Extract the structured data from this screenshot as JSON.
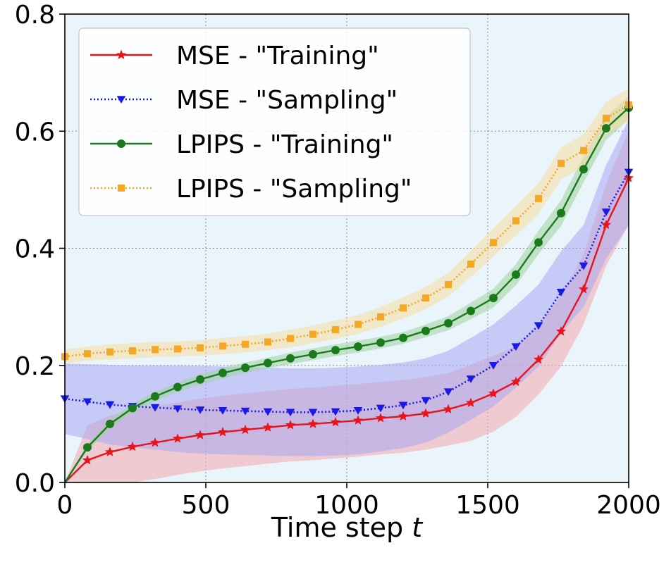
{
  "chart_data": {
    "type": "line",
    "title": "",
    "xlabel": "Time step",
    "xlabel_var": "t",
    "ylabel": "",
    "xlim": [
      0,
      2000
    ],
    "ylim": [
      0,
      0.8
    ],
    "xticks": [
      0,
      500,
      1000,
      1500,
      2000
    ],
    "xtick_labels": [
      "0",
      "500",
      "1000",
      "1500",
      "2000"
    ],
    "yticks": [
      0,
      0.2,
      0.4,
      0.6,
      0.8
    ],
    "ytick_labels": [
      "0.0",
      "0.2",
      "0.4",
      "0.6",
      "0.8"
    ],
    "grid": true,
    "legend_position": "top-left",
    "background": "#eaf4fb",
    "series": [
      {
        "name": "MSE - \"Training\"",
        "color": "#e8141b",
        "band_color": "#f2a7ad",
        "linestyle": "solid",
        "marker": "star",
        "x": [
          0,
          80,
          160,
          240,
          320,
          400,
          480,
          560,
          640,
          720,
          800,
          880,
          960,
          1040,
          1120,
          1200,
          1280,
          1360,
          1440,
          1520,
          1600,
          1680,
          1760,
          1840,
          1920,
          2000
        ],
        "values": [
          0.0,
          0.038,
          0.052,
          0.061,
          0.068,
          0.075,
          0.081,
          0.086,
          0.09,
          0.094,
          0.098,
          0.1,
          0.103,
          0.106,
          0.11,
          0.113,
          0.118,
          0.125,
          0.136,
          0.152,
          0.172,
          0.21,
          0.258,
          0.33,
          0.44,
          0.52
        ],
        "band_halfwidth": [
          0.0,
          0.06,
          0.062,
          0.062,
          0.062,
          0.062,
          0.062,
          0.062,
          0.062,
          0.062,
          0.062,
          0.062,
          0.062,
          0.062,
          0.062,
          0.062,
          0.062,
          0.062,
          0.065,
          0.065,
          0.06,
          0.06,
          0.06,
          0.06,
          0.07,
          0.08
        ]
      },
      {
        "name": "MSE - \"Sampling\"",
        "color": "#1a1ae6",
        "band_color": "#a8a8f2",
        "linestyle": "dotted",
        "marker": "triangle-down",
        "x": [
          0,
          80,
          160,
          240,
          320,
          400,
          480,
          560,
          640,
          720,
          800,
          880,
          960,
          1040,
          1120,
          1200,
          1280,
          1360,
          1440,
          1520,
          1600,
          1680,
          1760,
          1840,
          1920,
          2000
        ],
        "values": [
          0.143,
          0.138,
          0.133,
          0.13,
          0.128,
          0.126,
          0.124,
          0.123,
          0.122,
          0.121,
          0.12,
          0.12,
          0.121,
          0.123,
          0.127,
          0.132,
          0.14,
          0.155,
          0.177,
          0.2,
          0.232,
          0.268,
          0.325,
          0.37,
          0.462,
          0.53
        ],
        "band_halfwidth": [
          0.06,
          0.064,
          0.068,
          0.07,
          0.072,
          0.074,
          0.075,
          0.075,
          0.075,
          0.075,
          0.075,
          0.075,
          0.075,
          0.075,
          0.074,
          0.073,
          0.072,
          0.07,
          0.07,
          0.07,
          0.07,
          0.07,
          0.07,
          0.07,
          0.08,
          0.09
        ]
      },
      {
        "name": "LPIPS - \"Training\"",
        "color": "#1b7a1b",
        "band_color": "#9fd39f",
        "linestyle": "solid",
        "marker": "circle",
        "x": [
          0,
          80,
          160,
          240,
          320,
          400,
          480,
          560,
          640,
          720,
          800,
          880,
          960,
          1040,
          1120,
          1200,
          1280,
          1360,
          1440,
          1520,
          1600,
          1680,
          1760,
          1840,
          1920,
          2000
        ],
        "values": [
          0.0,
          0.06,
          0.1,
          0.127,
          0.147,
          0.163,
          0.176,
          0.187,
          0.196,
          0.204,
          0.212,
          0.219,
          0.226,
          0.232,
          0.239,
          0.247,
          0.259,
          0.272,
          0.293,
          0.315,
          0.355,
          0.41,
          0.46,
          0.535,
          0.605,
          0.64
        ],
        "band_halfwidth": [
          0.0,
          0.006,
          0.007,
          0.008,
          0.008,
          0.008,
          0.009,
          0.009,
          0.009,
          0.009,
          0.01,
          0.01,
          0.01,
          0.01,
          0.01,
          0.01,
          0.011,
          0.012,
          0.014,
          0.016,
          0.018,
          0.02,
          0.022,
          0.022,
          0.02,
          0.02
        ]
      },
      {
        "name": "LPIPS - \"Sampling\"",
        "color": "#f5a623",
        "band_color": "#f5dca0",
        "linestyle": "dotted",
        "marker": "square",
        "x": [
          0,
          80,
          160,
          240,
          320,
          400,
          480,
          560,
          640,
          720,
          800,
          880,
          960,
          1040,
          1120,
          1200,
          1280,
          1360,
          1440,
          1520,
          1600,
          1680,
          1760,
          1840,
          1920,
          2000
        ],
        "values": [
          0.215,
          0.22,
          0.223,
          0.225,
          0.227,
          0.228,
          0.23,
          0.233,
          0.236,
          0.24,
          0.246,
          0.253,
          0.261,
          0.27,
          0.283,
          0.298,
          0.315,
          0.338,
          0.373,
          0.41,
          0.447,
          0.485,
          0.545,
          0.567,
          0.622,
          0.645
        ],
        "band_halfwidth": [
          0.012,
          0.012,
          0.013,
          0.013,
          0.013,
          0.013,
          0.013,
          0.014,
          0.014,
          0.014,
          0.015,
          0.015,
          0.016,
          0.016,
          0.017,
          0.018,
          0.019,
          0.02,
          0.022,
          0.024,
          0.025,
          0.026,
          0.027,
          0.028,
          0.028,
          0.028
        ]
      }
    ]
  }
}
